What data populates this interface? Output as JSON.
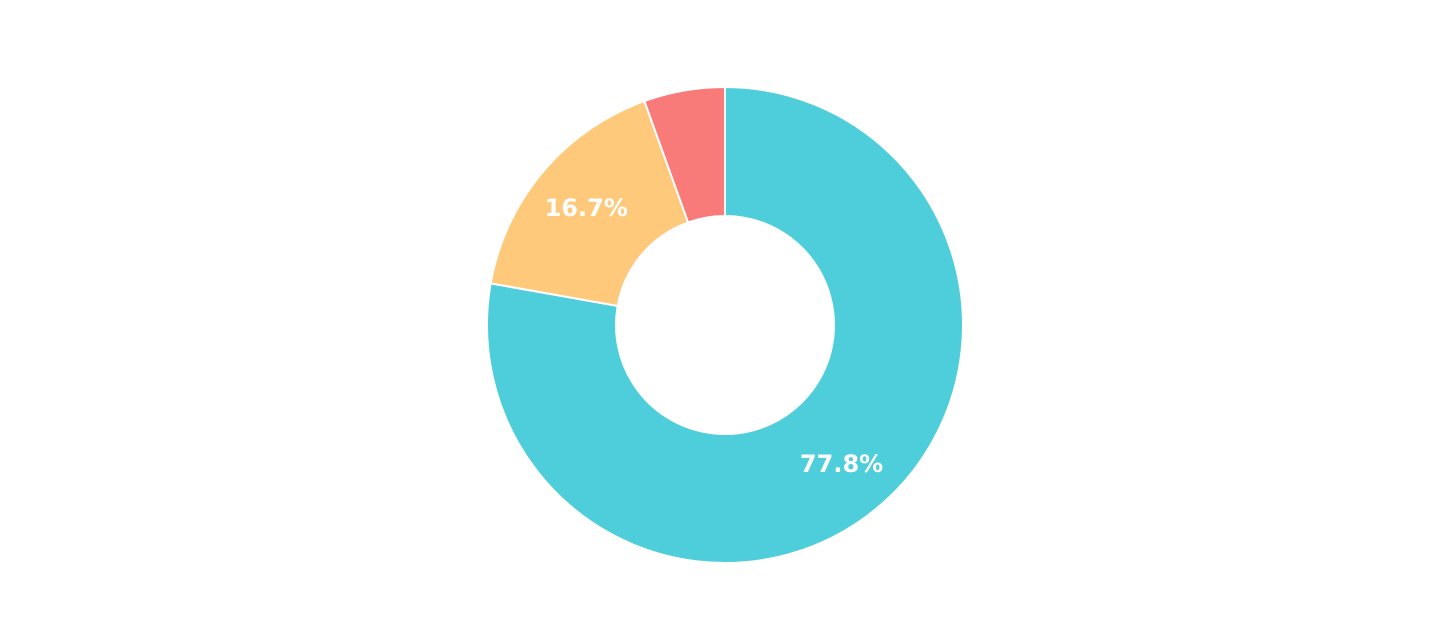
{
  "chart_data": {
    "type": "pie",
    "variant": "donut",
    "title": "",
    "slices": [
      {
        "value": 77.8,
        "label": "77.8%",
        "color": "#4ECDDA",
        "show_label": true
      },
      {
        "value": 16.7,
        "label": "16.7%",
        "color": "#FEC97B",
        "show_label": true
      },
      {
        "value": 5.5,
        "label": "",
        "color": "#F87B7A",
        "show_label": false
      }
    ],
    "start_angle": "top",
    "direction": "clockwise",
    "legend": "none"
  }
}
